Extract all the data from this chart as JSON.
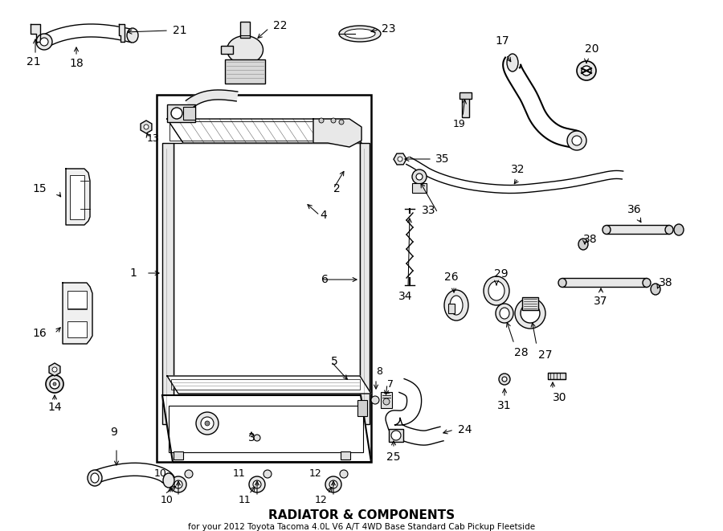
{
  "title": "RADIATOR & COMPONENTS",
  "subtitle": "for your 2012 Toyota Tacoma 4.0L V6 A/T 4WD Base Standard Cab Pickup Fleetside",
  "bg": "#ffffff",
  "lc": "#000000",
  "fig_w": 9.0,
  "fig_h": 6.61,
  "dpi": 100
}
